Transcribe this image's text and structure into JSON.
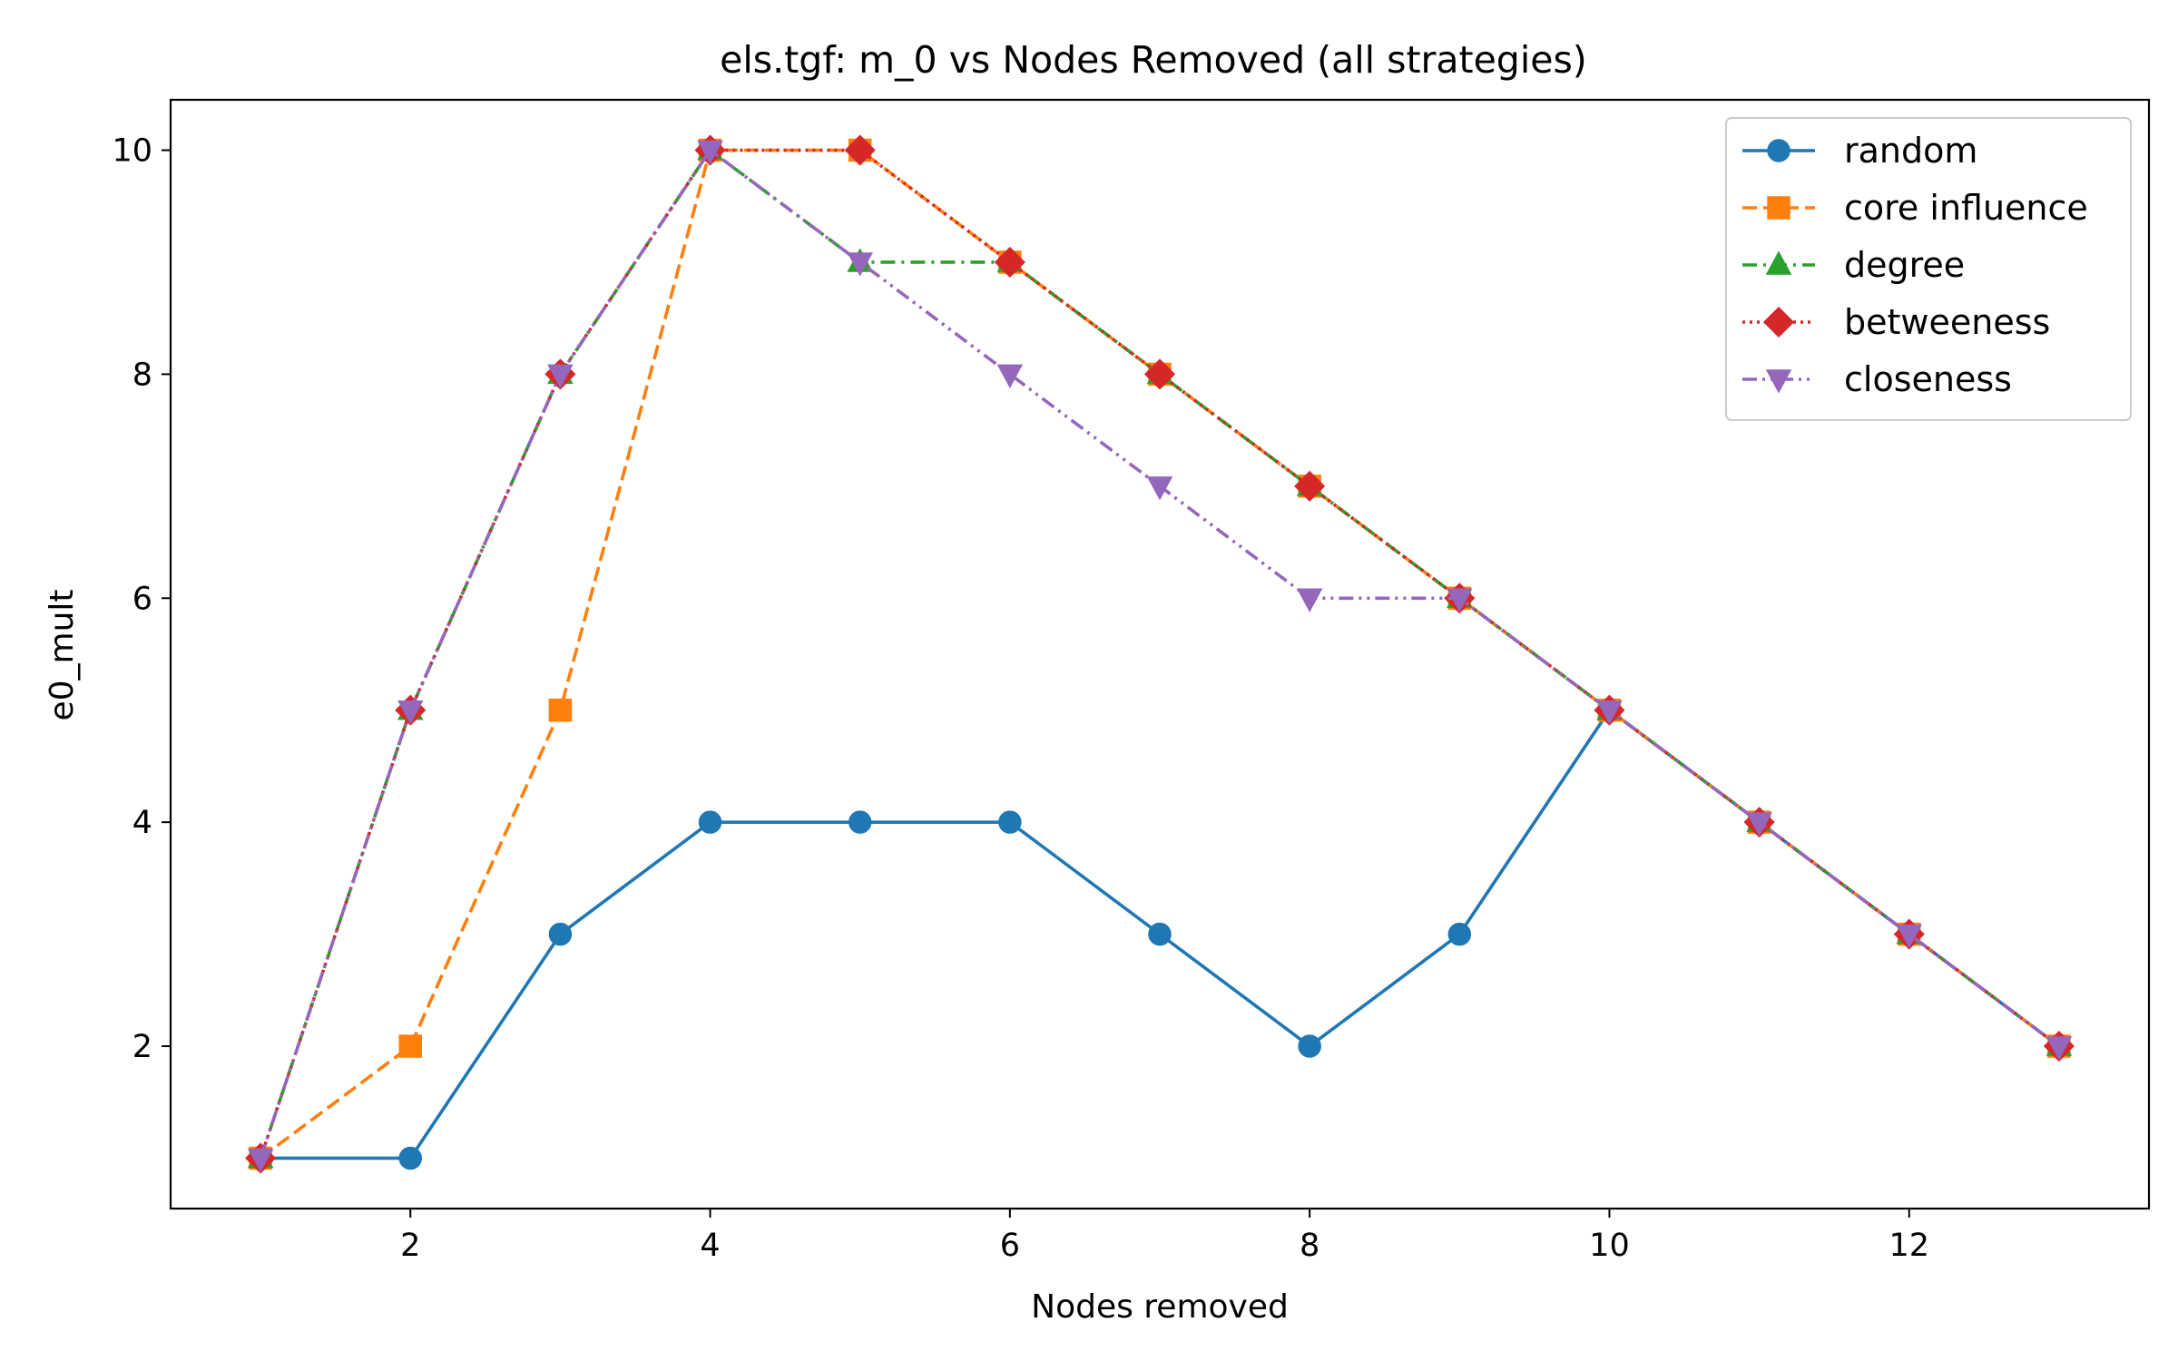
{
  "chart_data": {
    "type": "line",
    "title": "els.tgf: m_0 vs Nodes Removed (all strategies)",
    "xlabel": "Nodes removed",
    "ylabel": "e0_mult",
    "xlim": [
      0.4,
      13.6
    ],
    "ylim": [
      0.55,
      10.45
    ],
    "xticks": [
      2,
      4,
      6,
      8,
      10,
      12
    ],
    "yticks": [
      2,
      4,
      6,
      8,
      10
    ],
    "grid": false,
    "legend_position": "top-right",
    "x": [
      1,
      2,
      3,
      4,
      5,
      6,
      7,
      8,
      9,
      10,
      11,
      12,
      13
    ],
    "series": [
      {
        "name": "random",
        "color": "#1f77b4",
        "marker": "circle",
        "linestyle": "solid",
        "values": [
          1,
          1,
          3,
          4,
          4,
          4,
          3,
          2,
          3,
          5,
          4,
          3,
          2
        ]
      },
      {
        "name": "core influence",
        "color": "#ff7f0e",
        "marker": "square",
        "linestyle": "dashed",
        "values": [
          1,
          2,
          5,
          10,
          10,
          9,
          8,
          7,
          6,
          5,
          4,
          3,
          2
        ]
      },
      {
        "name": "degree",
        "color": "#2ca02c",
        "marker": "triangle-up",
        "linestyle": "dashdot",
        "values": [
          1,
          5,
          8,
          10,
          9,
          9,
          8,
          7,
          6,
          5,
          4,
          3,
          2
        ]
      },
      {
        "name": "betweeness",
        "color": "#d62728",
        "marker": "diamond",
        "linestyle": "dotted",
        "values": [
          1,
          5,
          8,
          10,
          10,
          9,
          8,
          7,
          6,
          5,
          4,
          3,
          2
        ]
      },
      {
        "name": "closeness",
        "color": "#9467bd",
        "marker": "triangle-down",
        "linestyle": "dashdotdot",
        "values": [
          1,
          5,
          8,
          10,
          9,
          8,
          7,
          6,
          6,
          5,
          4,
          3,
          2
        ]
      }
    ]
  }
}
